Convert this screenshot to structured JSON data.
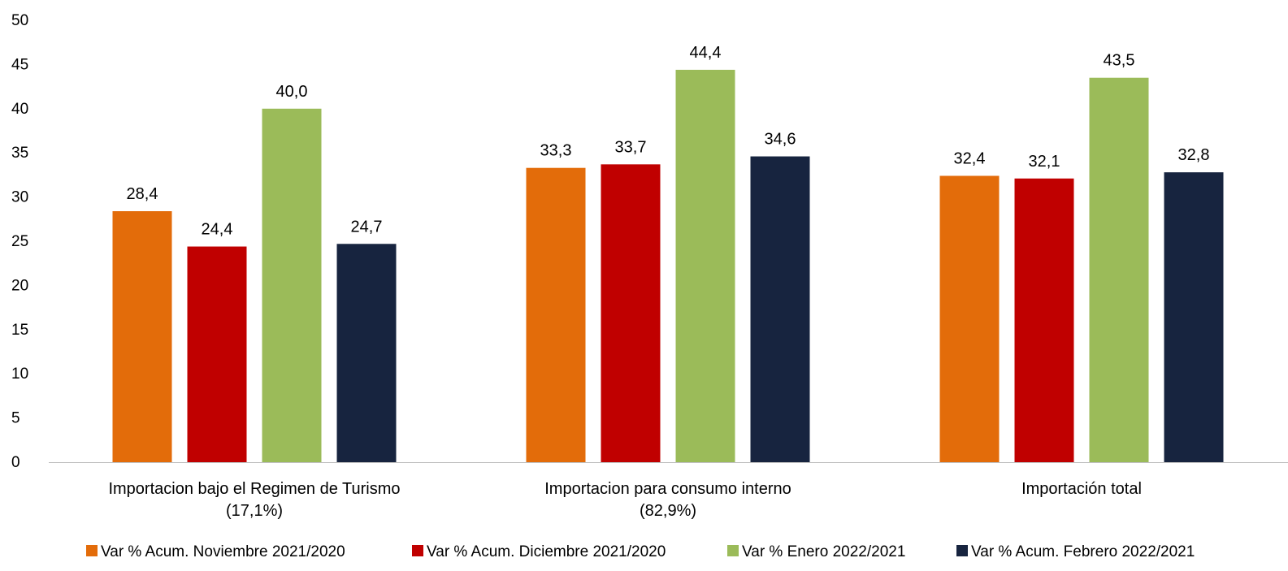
{
  "chart_data": {
    "type": "bar",
    "title": "",
    "xlabel": "",
    "ylabel": "",
    "ylim": [
      0,
      50
    ],
    "yticks": [
      "0",
      "5",
      "10",
      "15",
      "20",
      "25",
      "30",
      "35",
      "40",
      "45",
      "50"
    ],
    "grid": false,
    "legend_position": "bottom",
    "categories": [
      [
        "Importacion bajo el Regimen de Turismo",
        "(17,1%)"
      ],
      [
        "Importacion para consumo interno",
        "(82,9%)"
      ],
      [
        "Importación total"
      ]
    ],
    "series": [
      {
        "name": "Var % Acum. Noviembre 2021/2020",
        "color": "#E36C0A",
        "values": [
          28.4,
          33.3,
          32.4
        ],
        "labels": [
          "28,4",
          "33,3",
          "32,4"
        ]
      },
      {
        "name": "Var % Acum. Diciembre 2021/2020",
        "color": "#C00000",
        "values": [
          24.4,
          33.7,
          32.1
        ],
        "labels": [
          "24,4",
          "33,7",
          "32,1"
        ]
      },
      {
        "name": "Var % Enero 2022/2021",
        "color": "#9BBB59",
        "values": [
          40.0,
          44.4,
          43.5
        ],
        "labels": [
          "40,0",
          "44,4",
          "43,5"
        ]
      },
      {
        "name": "Var % Acum. Febrero 2022/2021",
        "color": "#17243F",
        "values": [
          24.7,
          34.6,
          32.8
        ],
        "labels": [
          "24,7",
          "34,6",
          "32,8"
        ]
      }
    ]
  }
}
